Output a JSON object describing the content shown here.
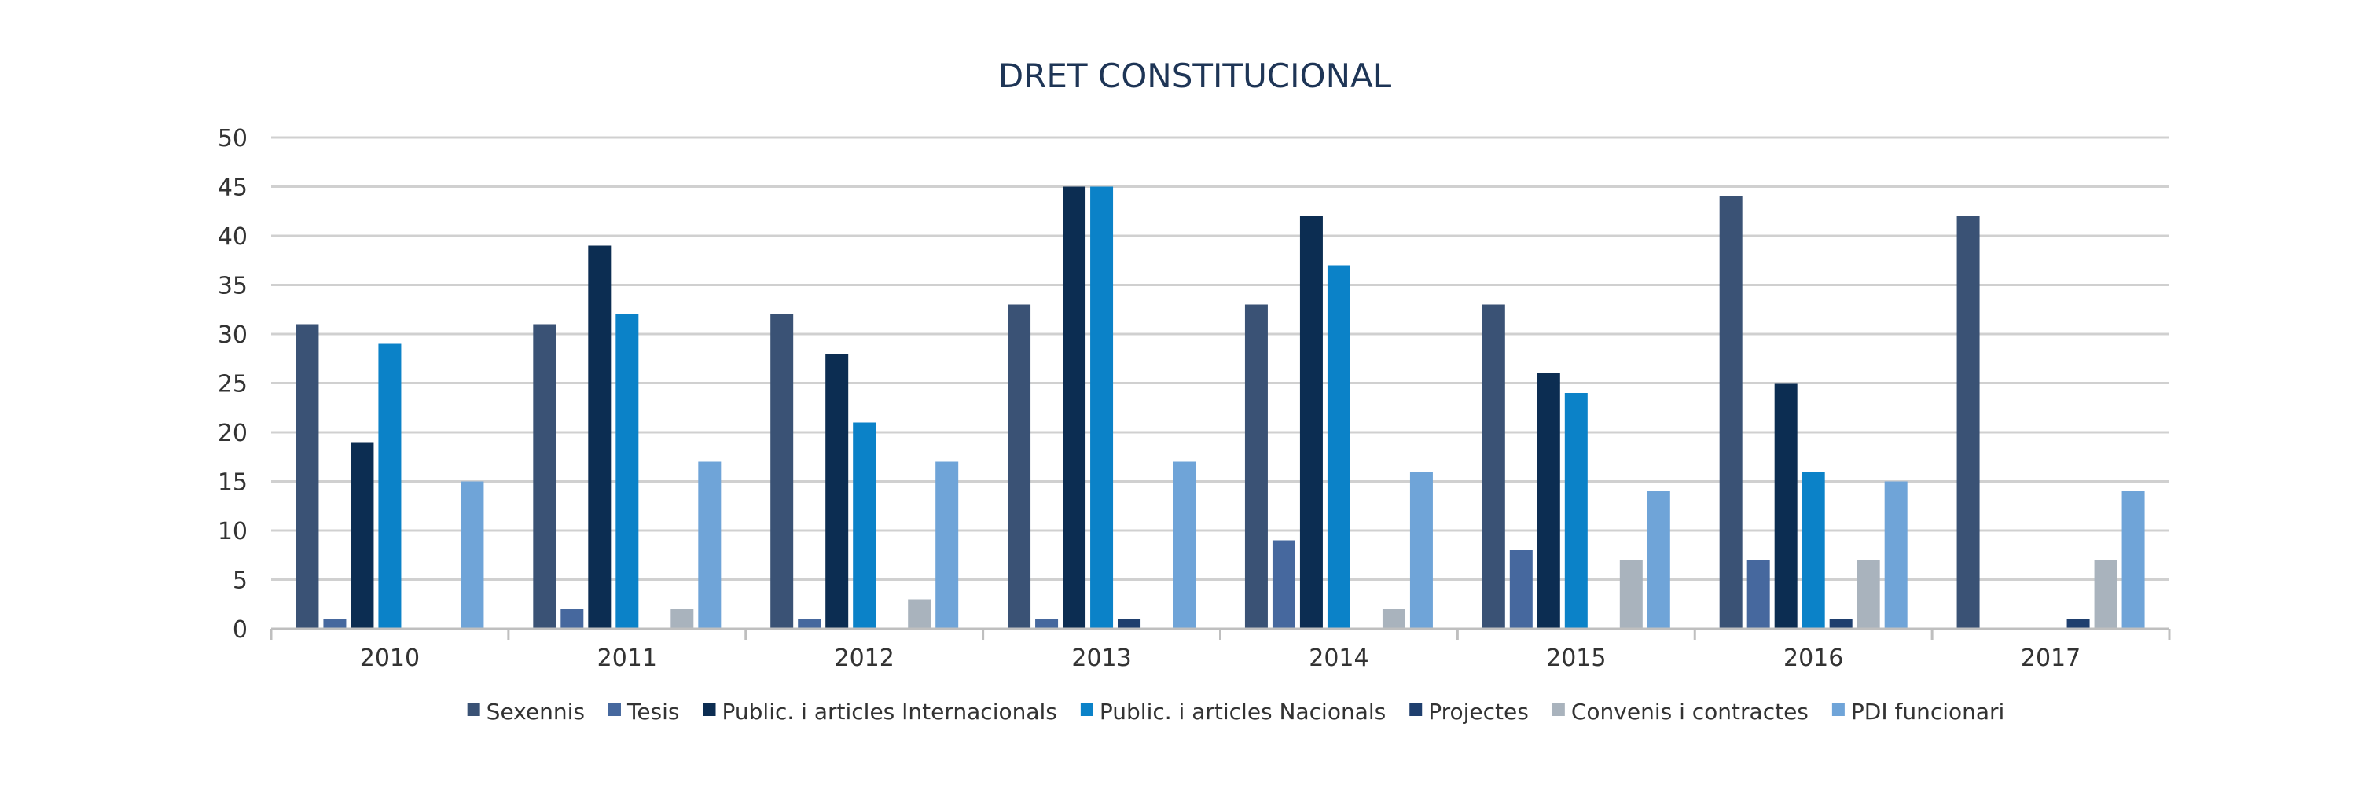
{
  "chart_data": {
    "type": "bar",
    "title": "DRET CONSTITUCIONAL",
    "xlabel": "",
    "ylabel": "",
    "ylim": [
      0,
      50
    ],
    "yticks": [
      0,
      5,
      10,
      15,
      20,
      25,
      30,
      35,
      40,
      45,
      50
    ],
    "grid": true,
    "legend_position": "bottom",
    "categories": [
      "2010",
      "2011",
      "2012",
      "2013",
      "2014",
      "2015",
      "2016",
      "2017"
    ],
    "series": [
      {
        "name": "Sexennis",
        "color": "#3a5275",
        "values": [
          31,
          31,
          32,
          33,
          33,
          33,
          44,
          42
        ]
      },
      {
        "name": "Tesis",
        "color": "#46689e",
        "values": [
          1,
          2,
          1,
          1,
          9,
          8,
          7,
          0
        ]
      },
      {
        "name": "Public. i articles Internacionals",
        "color": "#0c2d52",
        "values": [
          19,
          39,
          28,
          45,
          42,
          26,
          25,
          0
        ]
      },
      {
        "name": "Public. i articles Nacionals",
        "color": "#0b82c8",
        "values": [
          29,
          32,
          21,
          45,
          37,
          24,
          16,
          0
        ]
      },
      {
        "name": "Projectes",
        "color": "#1f3f6e",
        "values": [
          0,
          0,
          0,
          1,
          0,
          0,
          1,
          1
        ]
      },
      {
        "name": "Convenis i contractes",
        "color": "#a9b3bd",
        "values": [
          0,
          2,
          3,
          0,
          2,
          7,
          7,
          7
        ]
      },
      {
        "name": "PDI funcionari",
        "color": "#6fa4d8",
        "values": [
          15,
          17,
          17,
          17,
          16,
          14,
          15,
          14
        ]
      }
    ]
  }
}
